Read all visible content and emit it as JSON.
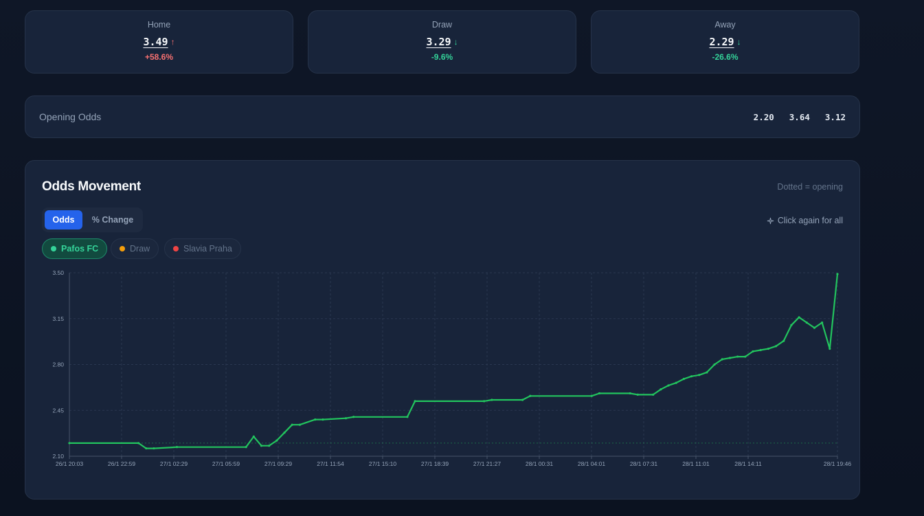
{
  "odds_cards": [
    {
      "label": "Home",
      "value": "3.49",
      "arrow": "↑",
      "change": "+58.6%",
      "direction": "up"
    },
    {
      "label": "Draw",
      "value": "3.29",
      "arrow": "↓",
      "change": "-9.6%",
      "direction": "down"
    },
    {
      "label": "Away",
      "value": "2.29",
      "arrow": "↓",
      "change": "-26.6%",
      "direction": "down"
    }
  ],
  "opening": {
    "title": "Opening Odds",
    "values": [
      "2.20",
      "3.64",
      "3.12"
    ]
  },
  "movement": {
    "title": "Odds Movement",
    "note": "Dotted = opening",
    "toggle": {
      "odds": "Odds",
      "pct": "% Change"
    },
    "hint": {
      "icon": "sparkle-icon",
      "text": "Click again for all"
    },
    "pills": [
      {
        "label": "Pafos FC",
        "color": "#22c55e",
        "active": true
      },
      {
        "label": "Draw",
        "color": "#f59e0b",
        "active": false
      },
      {
        "label": "Slavia Praha",
        "color": "#ef4444",
        "active": false
      }
    ]
  },
  "colors": {
    "up": "#f87171",
    "down": "#34d399",
    "accent": "#2563eb",
    "series": "#22c55e"
  },
  "chart_data": {
    "type": "line",
    "title": "",
    "xlabel": "",
    "ylabel": "",
    "ylim": [
      2.1,
      3.5
    ],
    "y_ticks": [
      "3.50",
      "3.15",
      "2.80",
      "2.45",
      "2.10"
    ],
    "x_tick_labels": [
      "26/1 20:03",
      "26/1 22:59",
      "27/1 02:29",
      "27/1 05:59",
      "27/1 09:29",
      "27/1 11:54",
      "27/1 15:10",
      "27/1 18:39",
      "27/1 21:27",
      "28/1 00:31",
      "28/1 04:01",
      "28/1 07:31",
      "28/1 11:01",
      "28/1 14:11",
      "28/1 19:46"
    ],
    "grid": true,
    "opening_reference": 2.2,
    "series": [
      {
        "name": "Pafos FC",
        "x": [
          0,
          9,
          10,
          11,
          14,
          23,
          24,
          25,
          26,
          27,
          28,
          29,
          30,
          32,
          33,
          36,
          37,
          44,
          45,
          54,
          55,
          59,
          60,
          68,
          69,
          73,
          74,
          76,
          77,
          78,
          79,
          80,
          81,
          82,
          83,
          84,
          85,
          86,
          87,
          88,
          89,
          90,
          91,
          92,
          93,
          94,
          95,
          96,
          97,
          98,
          99,
          100
        ],
        "y": [
          2.2,
          2.2,
          2.16,
          2.16,
          2.17,
          2.17,
          2.25,
          2.18,
          2.18,
          2.22,
          2.28,
          2.34,
          2.34,
          2.38,
          2.38,
          2.39,
          2.4,
          2.4,
          2.52,
          2.52,
          2.53,
          2.53,
          2.56,
          2.56,
          2.58,
          2.58,
          2.57,
          2.57,
          2.61,
          2.64,
          2.66,
          2.69,
          2.71,
          2.72,
          2.74,
          2.8,
          2.84,
          2.85,
          2.86,
          2.86,
          2.9,
          2.91,
          2.92,
          2.94,
          2.98,
          3.1,
          3.16,
          3.12,
          3.08,
          3.12,
          2.92,
          3.49
        ]
      }
    ]
  }
}
